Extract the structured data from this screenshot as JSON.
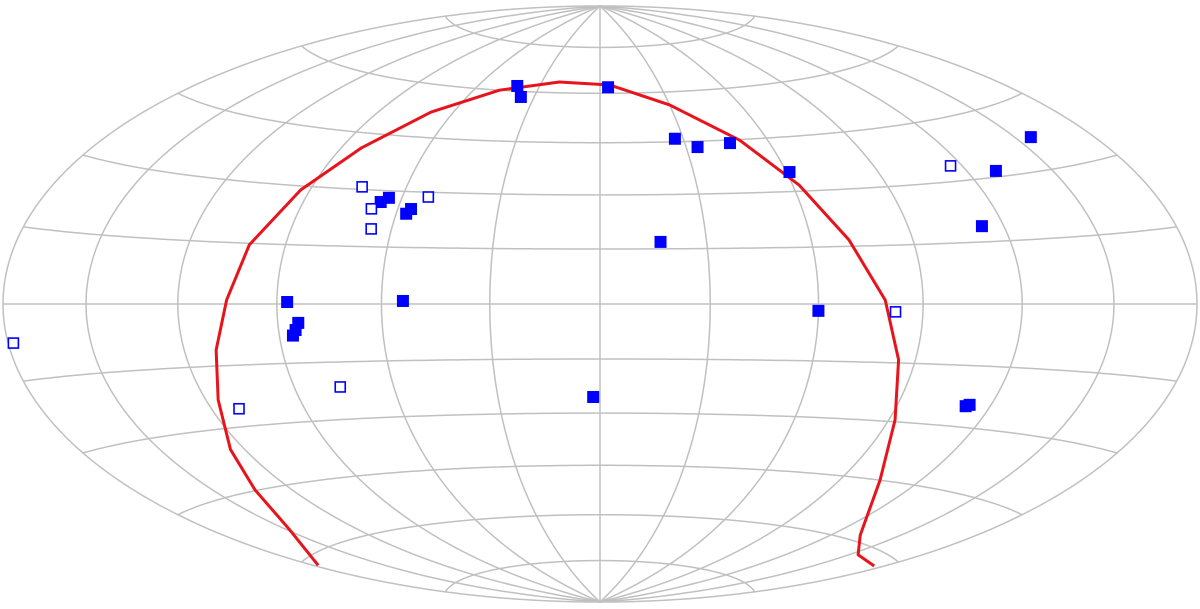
{
  "chart_data": {
    "type": "scatter",
    "projection": "hammer",
    "xlim": [
      -180,
      180
    ],
    "ylim": [
      -90,
      90
    ],
    "xticks": [
      -180,
      -150,
      -120,
      -90,
      -60,
      -30,
      0,
      30,
      60,
      90,
      120,
      150,
      180
    ],
    "yticks": [
      -75,
      -60,
      -45,
      -30,
      -15,
      0,
      15,
      30,
      45,
      60,
      75
    ],
    "grid": true,
    "grid_color": "#c0c0c0",
    "series": [
      {
        "marker": "filled",
        "color": "#0000ff",
        "x": [
          -41,
          -36,
          4,
          27,
          34,
          46,
          61,
          17,
          156,
          130,
          113,
          60,
          -2,
          112,
          113,
          -54,
          -87,
          -84,
          -85,
          -86,
          -64,
          -66,
          -56,
          -57
        ],
        "y": [
          61.6,
          58.3,
          61.9,
          45.9,
          43.3,
          44.1,
          35.3,
          16.9,
          37.2,
          31.4,
          18.8,
          -1.8,
          -25.5,
          -24.9,
          -24.5,
          0.8,
          0.5,
          -4.8,
          -6.6,
          -8,
          28.1,
          26.9,
          25.3,
          24
        ]
      },
      {
        "marker": "open",
        "color": "#0000ff",
        "x": [
          -74,
          -68,
          -66,
          -52,
          116,
          82,
          -76,
          -111,
          -178
        ],
        "y": [
          30.7,
          25,
          19.7,
          28.7,
          33.8,
          -2,
          -21.5,
          -25.6,
          -7.6
        ]
      }
    ],
    "curve": {
      "color": "#e8141c",
      "x": [
        -178,
        -149,
        -134,
        -125,
        -116,
        -110,
        -105,
        -101,
        -93,
        -83,
        -69,
        -48,
        -21,
        5,
        30,
        50,
        62,
        71,
        79,
        85,
        92,
        105,
        133,
        154,
        176
      ],
      "y": [
        -61.7,
        -54.6,
        -44.8,
        -35,
        -23.1,
        -11.1,
        1,
        14.6,
        29,
        40.9,
        52.2,
        60,
        63.4,
        62.6,
        56,
        44.8,
        31.7,
        16.7,
        1,
        -14.2,
        -29.5,
        -45,
        -58.5,
        -62.2,
        -62.4
      ]
    }
  }
}
